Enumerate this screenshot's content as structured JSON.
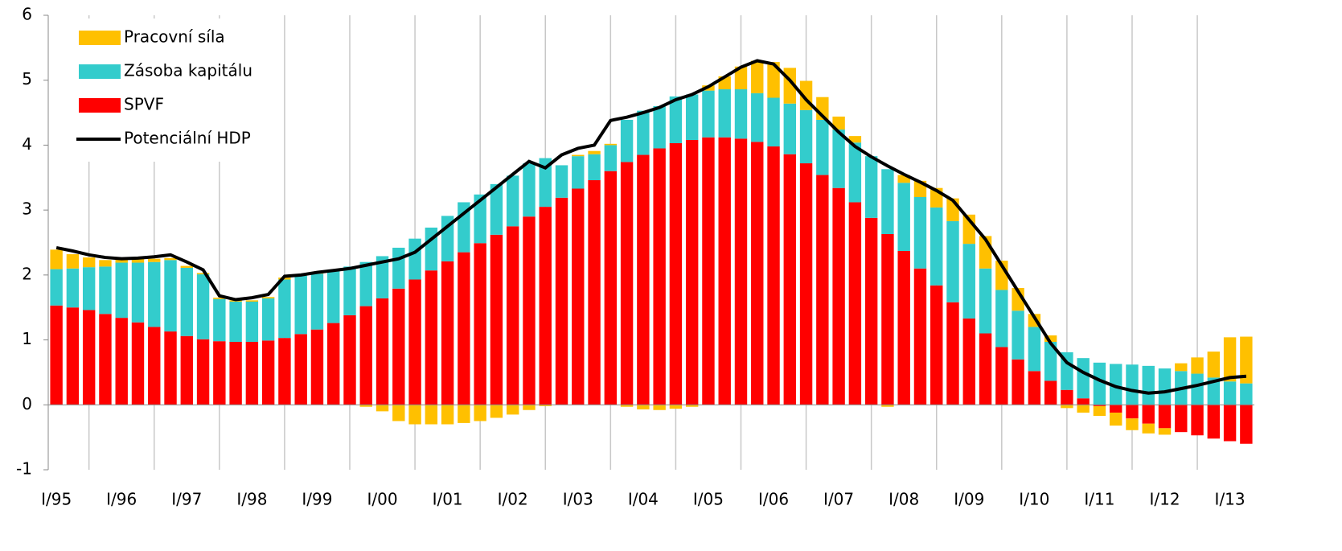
{
  "chart_data": {
    "type": "bar",
    "stacked": true,
    "categories": [
      "I/95",
      null,
      null,
      null,
      "I/96",
      null,
      null,
      null,
      "I/97",
      null,
      null,
      null,
      "I/98",
      null,
      null,
      null,
      "I/99",
      null,
      null,
      null,
      "I/00",
      null,
      null,
      null,
      "I/01",
      null,
      null,
      null,
      "I/02",
      null,
      null,
      null,
      "I/03",
      null,
      null,
      null,
      "I/04",
      null,
      null,
      null,
      "I/05",
      null,
      null,
      null,
      "I/06",
      null,
      null,
      null,
      "I/07",
      null,
      null,
      null,
      "I/08",
      null,
      null,
      null,
      "I/09",
      null,
      null,
      null,
      "I/10",
      null,
      null,
      null,
      "I/11",
      null,
      null,
      null,
      "I/12",
      null,
      null,
      null,
      "I/13",
      null
    ],
    "series": [
      {
        "name": "Pracovní síla",
        "color": "#ffc000",
        "values": [
          0.3,
          0.22,
          0.15,
          0.1,
          0.07,
          0.06,
          0.05,
          0.03,
          0.03,
          0.02,
          0.02,
          0.02,
          0.02,
          0.02,
          0.03,
          0.02,
          0.02,
          0.01,
          0,
          -0.03,
          -0.1,
          -0.25,
          -0.3,
          -0.3,
          -0.3,
          -0.28,
          -0.25,
          -0.2,
          -0.15,
          -0.08,
          -0.02,
          0,
          0.02,
          0.05,
          0.02,
          -0.03,
          -0.07,
          -0.08,
          -0.06,
          -0.03,
          0.08,
          0.2,
          0.35,
          0.5,
          0.55,
          0.55,
          0.45,
          0.35,
          0.2,
          0.1,
          0,
          -0.03,
          0.12,
          0.25,
          0.3,
          0.35,
          0.45,
          0.5,
          0.45,
          0.35,
          0.2,
          0.1,
          -0.05,
          -0.12,
          -0.15,
          -0.2,
          -0.18,
          -0.15,
          -0.1,
          0.12,
          0.25,
          0.4,
          0.68,
          0.72
        ]
      },
      {
        "name": "Zásoba kapitálu",
        "color": "#33cccc",
        "values": [
          0.56,
          0.6,
          0.66,
          0.73,
          0.85,
          0.92,
          1.0,
          1.1,
          1.05,
          1.0,
          0.65,
          0.62,
          0.62,
          0.65,
          0.9,
          0.9,
          0.86,
          0.8,
          0.75,
          0.68,
          0.65,
          0.63,
          0.63,
          0.66,
          0.7,
          0.77,
          0.75,
          0.78,
          0.78,
          0.82,
          0.75,
          0.5,
          0.5,
          0.4,
          0.4,
          0.65,
          0.68,
          0.65,
          0.72,
          0.7,
          0.72,
          0.74,
          0.76,
          0.75,
          0.75,
          0.78,
          0.82,
          0.85,
          0.9,
          0.92,
          0.95,
          1.0,
          1.05,
          1.1,
          1.2,
          1.25,
          1.15,
          1.0,
          0.88,
          0.75,
          0.68,
          0.6,
          0.58,
          0.62,
          0.65,
          0.63,
          0.62,
          0.6,
          0.56,
          0.52,
          0.48,
          0.42,
          0.36,
          0.33
        ]
      },
      {
        "name": "SPVF",
        "color": "#ff0000",
        "values": [
          1.53,
          1.5,
          1.46,
          1.4,
          1.34,
          1.27,
          1.2,
          1.13,
          1.06,
          1.01,
          0.98,
          0.97,
          0.97,
          0.99,
          1.03,
          1.09,
          1.16,
          1.26,
          1.38,
          1.52,
          1.64,
          1.79,
          1.93,
          2.07,
          2.21,
          2.35,
          2.49,
          2.62,
          2.75,
          2.9,
          3.05,
          3.19,
          3.33,
          3.46,
          3.6,
          3.74,
          3.85,
          3.95,
          4.03,
          4.08,
          4.12,
          4.12,
          4.1,
          4.05,
          3.98,
          3.86,
          3.72,
          3.54,
          3.34,
          3.12,
          2.88,
          2.63,
          2.37,
          2.1,
          1.84,
          1.58,
          1.33,
          1.1,
          0.89,
          0.7,
          0.52,
          0.37,
          0.23,
          0.1,
          -0.02,
          -0.12,
          -0.21,
          -0.29,
          -0.36,
          -0.42,
          -0.47,
          -0.52,
          -0.56,
          -0.6
        ]
      },
      {
        "name": "Potenciální HDP",
        "color": "#000000",
        "type": "line",
        "values": [
          2.42,
          2.37,
          2.31,
          2.27,
          2.25,
          2.26,
          2.28,
          2.31,
          2.2,
          2.08,
          1.68,
          1.62,
          1.65,
          1.7,
          1.98,
          2.0,
          2.04,
          2.07,
          2.1,
          2.15,
          2.2,
          2.25,
          2.35,
          2.55,
          2.75,
          2.95,
          3.15,
          3.35,
          3.55,
          3.75,
          3.65,
          3.85,
          3.95,
          4.0,
          4.38,
          4.43,
          4.5,
          4.58,
          4.7,
          4.78,
          4.9,
          5.05,
          5.2,
          5.3,
          5.25,
          5.0,
          4.7,
          4.45,
          4.2,
          3.98,
          3.82,
          3.68,
          3.55,
          3.43,
          3.3,
          3.15,
          2.85,
          2.55,
          2.15,
          1.75,
          1.35,
          0.95,
          0.65,
          0.5,
          0.38,
          0.28,
          0.22,
          0.18,
          0.2,
          0.25,
          0.3,
          0.36,
          0.42,
          0.44
        ]
      }
    ],
    "ylim": [
      -1,
      6
    ],
    "yticks": [
      -1,
      0,
      1,
      2,
      3,
      4,
      5,
      6
    ],
    "legend": "top-left"
  }
}
